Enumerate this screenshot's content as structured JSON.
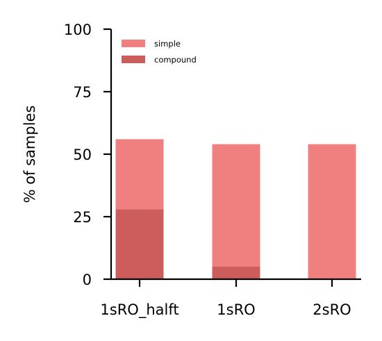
{
  "chart_data": {
    "type": "bar",
    "stacked": true,
    "categories": [
      "1sRO_halft",
      "1sRO",
      "2sRO"
    ],
    "series": [
      {
        "name": "simple",
        "values": [
          28,
          49,
          54
        ],
        "color": "#f08080"
      },
      {
        "name": "compound",
        "values": [
          28,
          5,
          0
        ],
        "color": "#cd5c5c"
      }
    ],
    "ylabel": "% of samples",
    "xlabel": "",
    "ylim": [
      0,
      100
    ],
    "yticks": [
      0,
      25,
      50,
      75,
      100
    ],
    "legend": "top-left",
    "grid": false
  }
}
